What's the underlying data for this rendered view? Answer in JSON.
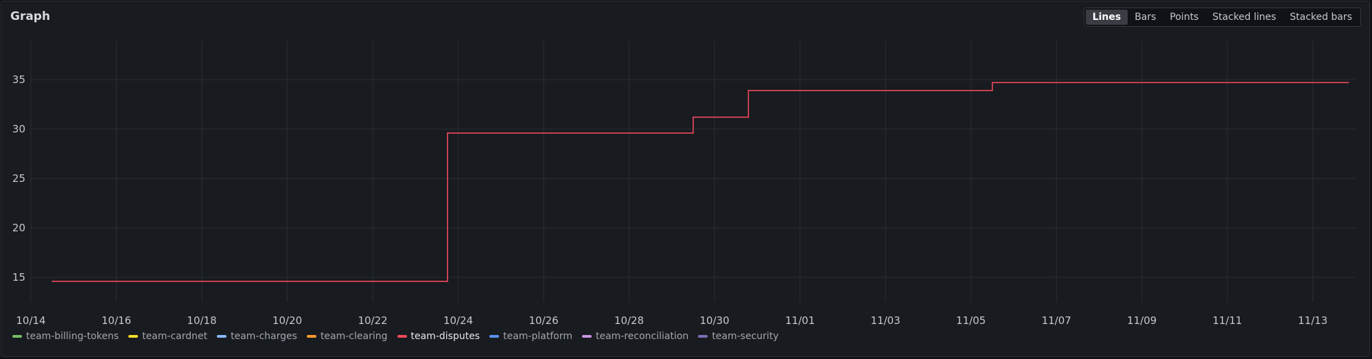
{
  "panel": {
    "title": "Graph"
  },
  "viz_options": [
    "Lines",
    "Bars",
    "Points",
    "Stacked lines",
    "Stacked bars"
  ],
  "viz_selected": "Lines",
  "colors": {
    "accent": "#f2495c",
    "grid": "#2b2e34",
    "tick": "#c7c8cf"
  },
  "chart_data": {
    "type": "line",
    "title": "",
    "xlabel": "",
    "ylabel": "",
    "grid": true,
    "legend_position": "bottom-left",
    "x_type": "date",
    "xlim": [
      "10/14 00:00",
      "11/14 00:00"
    ],
    "ylim": [
      12.5,
      37.5
    ],
    "y_ticks": [
      15,
      20,
      25,
      30,
      35
    ],
    "x_ticks": [
      "10/14",
      "10/16",
      "10/18",
      "10/20",
      "10/22",
      "10/24",
      "10/26",
      "10/28",
      "10/30",
      "11/01",
      "11/03",
      "11/05",
      "11/07",
      "11/09",
      "11/11",
      "11/13"
    ],
    "series": [
      {
        "name": "team-billing-tokens",
        "color": "#73bf69",
        "points": []
      },
      {
        "name": "team-cardnet",
        "color": "#fade2a",
        "points": []
      },
      {
        "name": "team-charges",
        "color": "#8ab8ff",
        "points": []
      },
      {
        "name": "team-clearing",
        "color": "#ff9830",
        "points": []
      },
      {
        "name": "team-disputes",
        "color": "#f2495c",
        "step": true,
        "points": [
          [
            "10/14 12:00",
            14.6
          ],
          [
            "10/23 18:00",
            14.6
          ],
          [
            "10/23 18:00",
            29.6
          ],
          [
            "10/29 12:00",
            29.6
          ],
          [
            "10/29 12:00",
            31.2
          ],
          [
            "10/30 19:00",
            31.2
          ],
          [
            "10/30 19:00",
            33.9
          ],
          [
            "11/05 12:00",
            33.9
          ],
          [
            "11/05 12:00",
            34.7
          ],
          [
            "11/13 20:00",
            34.7
          ]
        ]
      },
      {
        "name": "team-platform",
        "color": "#5794f2",
        "points": []
      },
      {
        "name": "team-reconciliation",
        "color": "#ca95e5",
        "points": []
      },
      {
        "name": "team-security",
        "color": "#806eb7",
        "points": []
      }
    ]
  }
}
